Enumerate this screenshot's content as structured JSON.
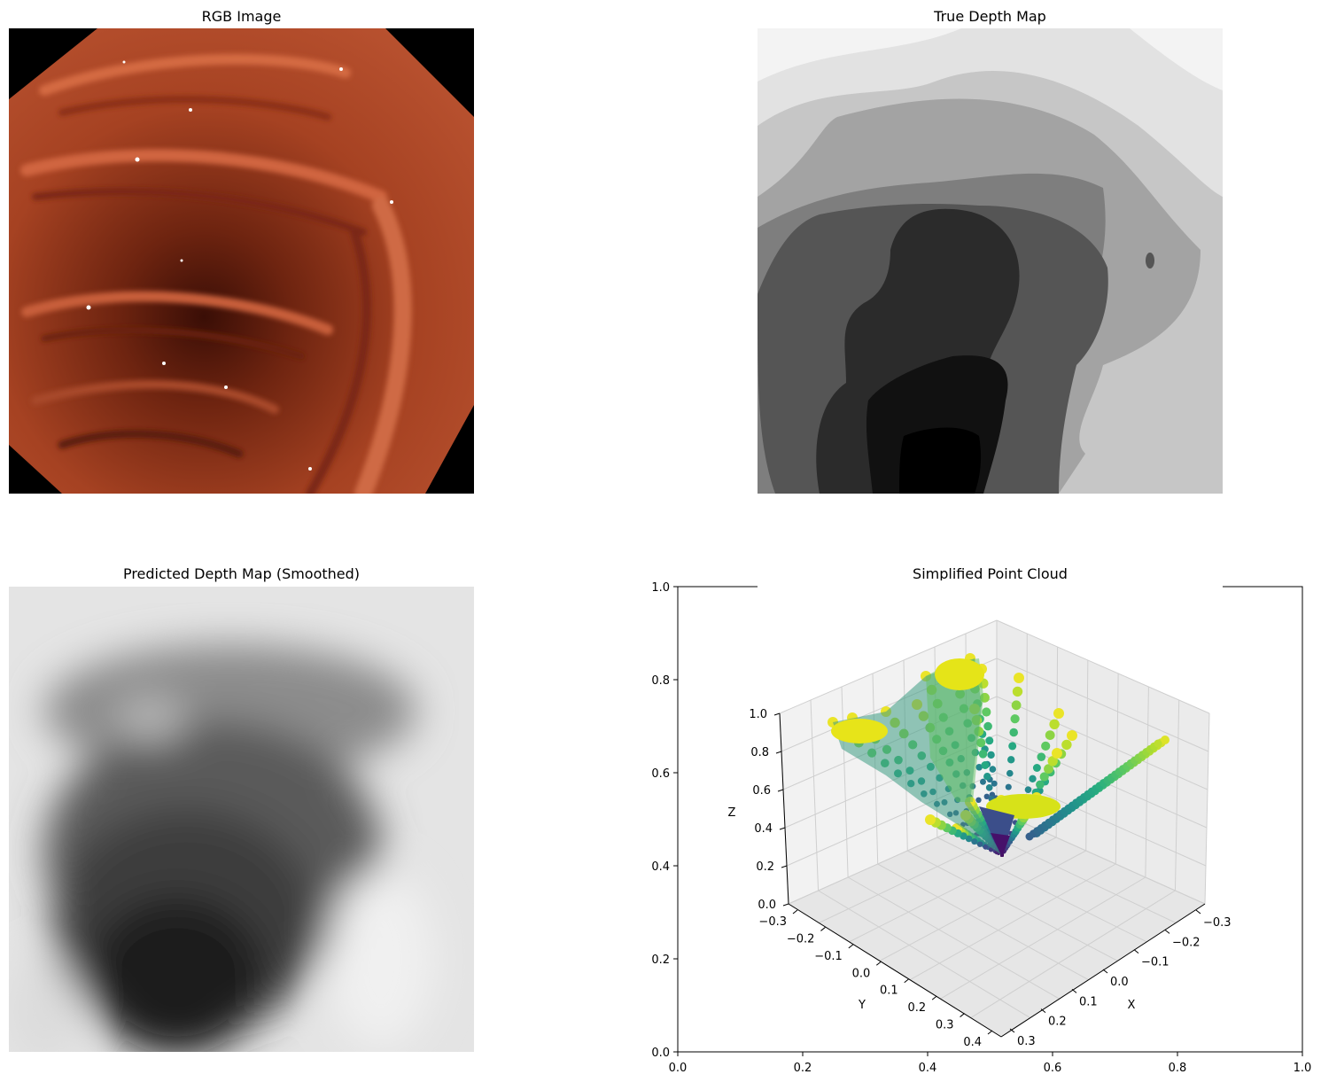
{
  "figure": {
    "panels": [
      {
        "title": "RGB Image"
      },
      {
        "title": "True Depth Map"
      },
      {
        "title": "Predicted Depth Map (Smoothed)"
      },
      {
        "title": "Simplified Point Cloud"
      }
    ]
  },
  "chart_data": [
    {
      "type": "image",
      "title": "RGB Image",
      "content": "endoscopic colon RGB image",
      "colors": {
        "tissue": "#b04a2a",
        "border": "#000000"
      }
    },
    {
      "type": "heatmap",
      "title": "True Depth Map",
      "colormap": "gray",
      "levels": 10,
      "axes": "off"
    },
    {
      "type": "heatmap",
      "title": "Predicted Depth Map (Smoothed)",
      "colormap": "gray",
      "axes": "off"
    },
    {
      "type": "scatter3d",
      "title": "Simplified Point Cloud",
      "colormap": "viridis",
      "outer_axes": {
        "xlim": [
          0.0,
          1.0
        ],
        "ylim": [
          0.0,
          1.0
        ],
        "xticks": [
          "0.0",
          "0.2",
          "0.4",
          "0.6",
          "0.8",
          "1.0"
        ],
        "yticks": [
          "0.0",
          "0.2",
          "0.4",
          "0.6",
          "0.8",
          "1.0"
        ]
      },
      "axes3d": {
        "xlabel": "X",
        "ylabel": "Y",
        "zlabel": "Z",
        "xlim": [
          -0.35,
          0.35
        ],
        "ylim": [
          -0.4,
          0.4
        ],
        "zlim": [
          0.0,
          1.0
        ],
        "xticks": [
          "−0.3",
          "−0.2",
          "−0.1",
          "0.0",
          "0.1",
          "0.2",
          "0.3"
        ],
        "yticks": [
          "−0.3",
          "−0.2",
          "−0.1",
          "0.0",
          "0.1",
          "0.2",
          "0.3",
          "0.4"
        ],
        "zticks": [
          "0.0",
          "0.2",
          "0.4",
          "0.6",
          "0.8",
          "1.0"
        ],
        "grid": true
      }
    }
  ]
}
